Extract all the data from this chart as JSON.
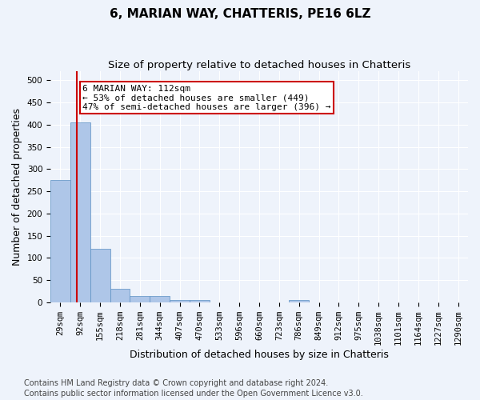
{
  "title": "6, MARIAN WAY, CHATTERIS, PE16 6LZ",
  "subtitle": "Size of property relative to detached houses in Chatteris",
  "xlabel": "Distribution of detached houses by size in Chatteris",
  "ylabel": "Number of detached properties",
  "bin_labels": [
    "29sqm",
    "92sqm",
    "155sqm",
    "218sqm",
    "281sqm",
    "344sqm",
    "407sqm",
    "470sqm",
    "533sqm",
    "596sqm",
    "660sqm",
    "723sqm",
    "786sqm",
    "849sqm",
    "912sqm",
    "975sqm",
    "1038sqm",
    "1101sqm",
    "1164sqm",
    "1227sqm",
    "1290sqm"
  ],
  "bar_heights": [
    275,
    405,
    120,
    30,
    15,
    15,
    5,
    5,
    0,
    0,
    0,
    0,
    5,
    0,
    0,
    0,
    0,
    0,
    0,
    0,
    0
  ],
  "bar_color": "#aec6e8",
  "bar_edge_color": "#5a8fc2",
  "vline_x": 0.82,
  "vline_color": "#cc0000",
  "annotation_text": "6 MARIAN WAY: 112sqm\n← 53% of detached houses are smaller (449)\n47% of semi-detached houses are larger (396) →",
  "annotation_box_color": "#ffffff",
  "annotation_box_edge": "#cc0000",
  "ylim": [
    0,
    520
  ],
  "yticks": [
    0,
    50,
    100,
    150,
    200,
    250,
    300,
    350,
    400,
    450,
    500
  ],
  "footnote1": "Contains HM Land Registry data © Crown copyright and database right 2024.",
  "footnote2": "Contains public sector information licensed under the Open Government Licence v3.0.",
  "background_color": "#eef3fb",
  "grid_color": "#ffffff",
  "title_fontsize": 11,
  "subtitle_fontsize": 9.5,
  "annotation_fontsize": 8,
  "axis_label_fontsize": 9,
  "tick_fontsize": 7.5,
  "footnote_fontsize": 7
}
